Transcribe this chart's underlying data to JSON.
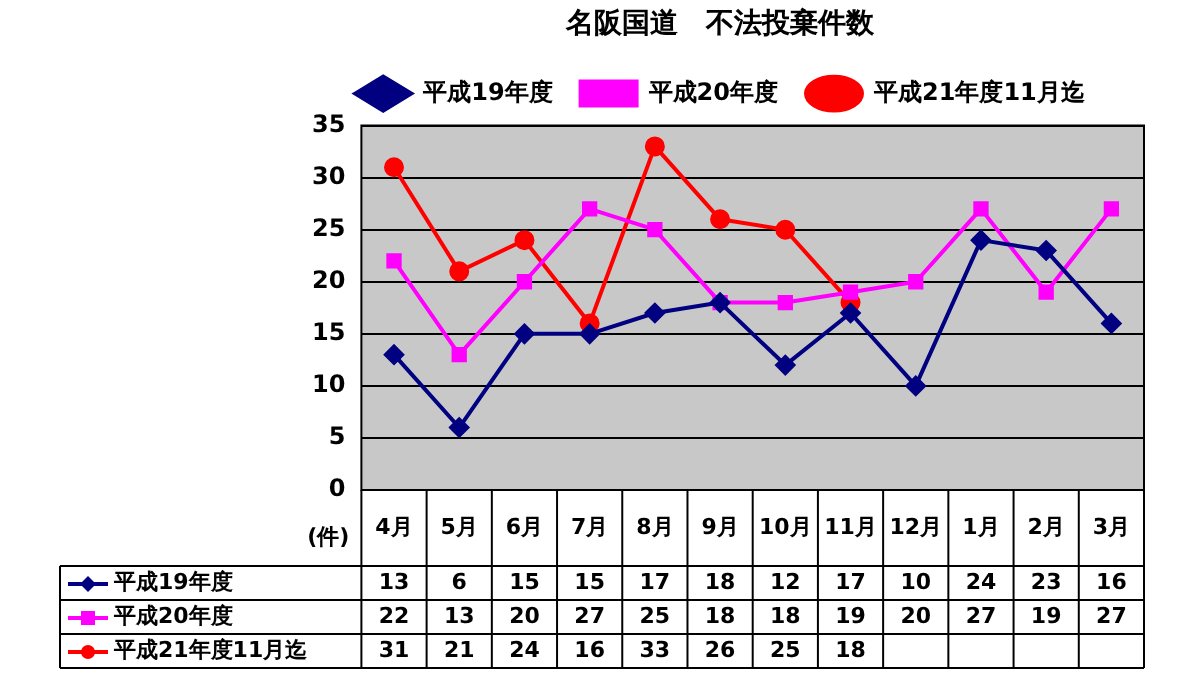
{
  "chart_data": {
    "type": "line",
    "title": "名阪国道　不法投棄件数",
    "ylabel": "(件)",
    "categories": [
      "4月",
      "5月",
      "6月",
      "7月",
      "8月",
      "9月",
      "10月",
      "11月",
      "12月",
      "1月",
      "2月",
      "3月"
    ],
    "series": [
      {
        "name": "平成19年度",
        "color": "#000080",
        "marker": "diamond",
        "values": [
          13,
          6,
          15,
          15,
          17,
          18,
          12,
          17,
          10,
          24,
          23,
          16
        ]
      },
      {
        "name": "平成20年度",
        "color": "#ff00ff",
        "marker": "square",
        "values": [
          22,
          13,
          20,
          27,
          25,
          18,
          18,
          19,
          20,
          27,
          19,
          27
        ]
      },
      {
        "name": "平成21年度11月迄",
        "color": "#ff0000",
        "marker": "circle",
        "values": [
          31,
          21,
          24,
          16,
          33,
          26,
          25,
          18,
          null,
          null,
          null,
          null
        ]
      }
    ],
    "ylim": [
      0,
      35
    ],
    "yticks": [
      0,
      5,
      10,
      15,
      20,
      25,
      30,
      35
    ],
    "grid": "y",
    "legend": "top",
    "data_labels": true
  }
}
